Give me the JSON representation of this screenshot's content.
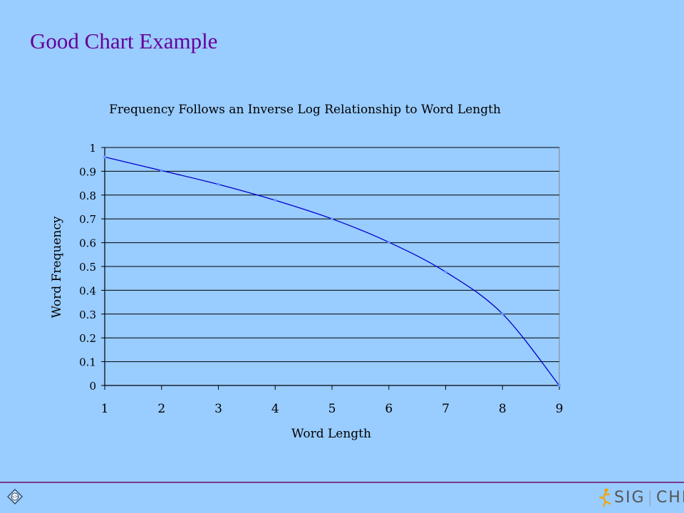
{
  "slide": {
    "title": "Good Chart Example",
    "footer_logo_left": "ACM",
    "footer_logo_right_a": "SIG",
    "footer_logo_right_b": "CHI"
  },
  "chart_data": {
    "type": "line",
    "title": "Frequency Follows an Inverse Log Relationship to Word Length",
    "xlabel": "Word Length",
    "ylabel": "Word Frequency",
    "x": [
      1,
      2,
      3,
      4,
      5,
      6,
      7,
      8,
      9
    ],
    "series": [
      {
        "values": [
          0.96,
          0.903,
          0.845,
          0.778,
          0.7,
          0.602,
          0.477,
          0.301,
          0.0
        ]
      }
    ],
    "xlim": [
      1,
      9
    ],
    "ylim": [
      0,
      1
    ],
    "yticks": [
      0,
      0.1,
      0.2,
      0.3,
      0.4,
      0.5,
      0.6,
      0.7,
      0.8,
      0.9,
      1
    ],
    "ytick_labels": [
      "0",
      "0.1",
      "0.2",
      "0.3",
      "0.4",
      "0.5",
      "0.6",
      "0.7",
      "0.8",
      "0.9",
      "1"
    ],
    "xtick_labels": [
      "1",
      "2",
      "3",
      "4",
      "5",
      "6",
      "7",
      "8",
      "9"
    ],
    "grid": true,
    "line_color": "#0000cc",
    "marker_color": "#6699ff"
  }
}
